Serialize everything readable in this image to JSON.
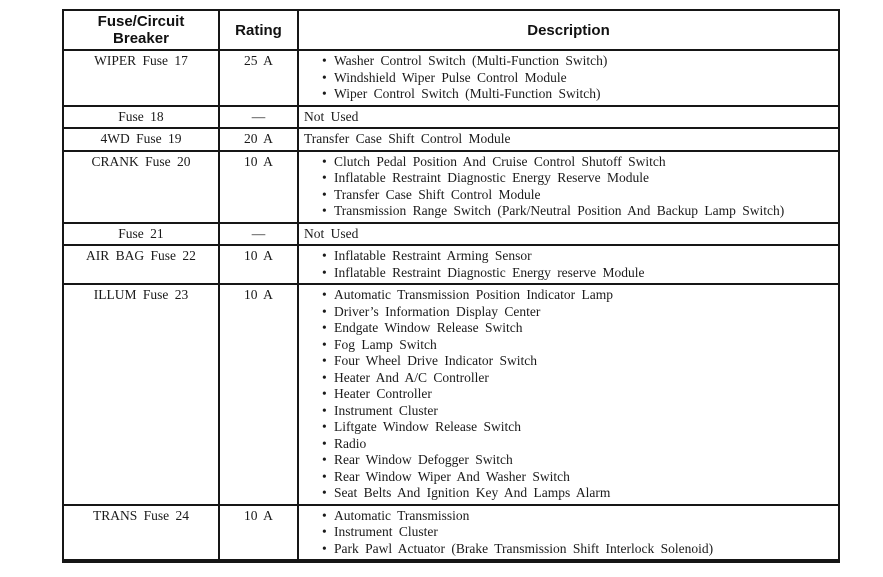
{
  "colors": {
    "background": "#ffffff",
    "text": "#1a1a1a",
    "border": "#161616"
  },
  "table": {
    "columns": [
      "Fuse/Circuit Breaker",
      "Rating",
      "Description"
    ],
    "rows": [
      {
        "fuse": "WIPER Fuse 17",
        "rating": "25 A",
        "bulleted": true,
        "items": [
          "Washer Control Switch (Multi-Function Switch)",
          "Windshield Wiper Pulse Control Module",
          "Wiper Control Switch (Multi-Function Switch)"
        ]
      },
      {
        "fuse": "Fuse 18",
        "rating": "—",
        "bulleted": false,
        "items": [
          "Not Used"
        ]
      },
      {
        "fuse": "4WD Fuse 19",
        "rating": "20 A",
        "bulleted": false,
        "items": [
          "Transfer Case Shift Control Module"
        ]
      },
      {
        "fuse": "CRANK Fuse 20",
        "rating": "10 A",
        "bulleted": true,
        "items": [
          "Clutch Pedal Position And Cruise Control Shutoff Switch",
          "Inflatable Restraint Diagnostic Energy Reserve Module",
          "Transfer Case Shift Control Module",
          "Transmission Range Switch (Park/Neutral Position And Backup Lamp Switch)"
        ]
      },
      {
        "fuse": "Fuse 21",
        "rating": "—",
        "bulleted": false,
        "items": [
          "Not Used"
        ]
      },
      {
        "fuse": "AIR BAG Fuse 22",
        "rating": "10 A",
        "bulleted": true,
        "items": [
          "Inflatable Restraint Arming Sensor",
          "Inflatable Restraint Diagnostic Energy reserve Module"
        ]
      },
      {
        "fuse": "ILLUM Fuse 23",
        "rating": "10 A",
        "bulleted": true,
        "items": [
          "Automatic Transmission Position Indicator Lamp",
          "Driver’s Information Display Center",
          "Endgate Window Release Switch",
          "Fog Lamp Switch",
          "Four Wheel Drive Indicator Switch",
          "Heater And A/C Controller",
          "Heater Controller",
          "Instrument Cluster",
          "Liftgate Window Release Switch",
          "Radio",
          "Rear Window Defogger Switch",
          "Rear Window Wiper And Washer Switch",
          "Seat Belts And Ignition Key And Lamps Alarm"
        ]
      },
      {
        "fuse": "TRANS Fuse 24",
        "rating": "10 A",
        "bulleted": true,
        "items": [
          "Automatic Transmission",
          "Instrument Cluster",
          "Park Pawl Actuator (Brake Transmission Shift Interlock Solenoid)"
        ]
      }
    ]
  }
}
